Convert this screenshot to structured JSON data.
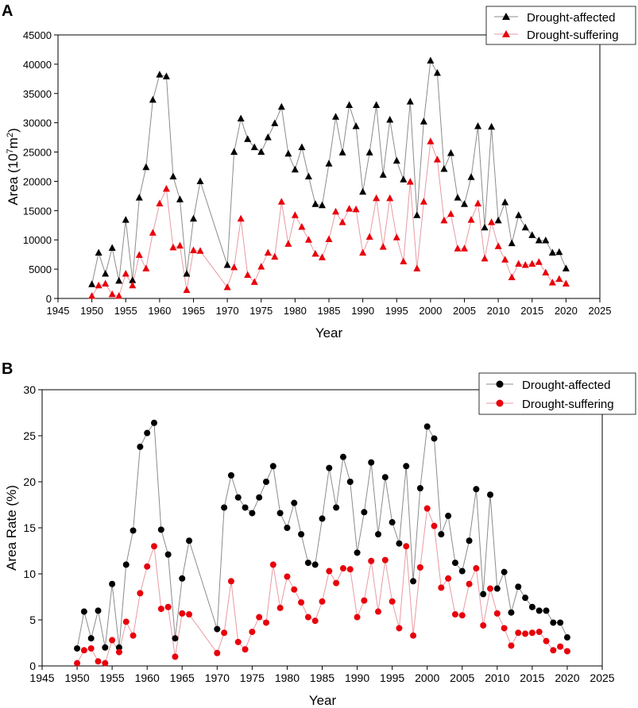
{
  "chart_data": [
    {
      "panel_label": "A",
      "type": "line",
      "xlabel": "Year",
      "ylabel_prefix": "Area (10",
      "ylabel_sup1": "7",
      "ylabel_mid": "m",
      "ylabel_sup2": "2",
      "ylabel_suffix": ")",
      "xlim": [
        1945,
        2025
      ],
      "ylim": [
        0,
        45000
      ],
      "xticks": [
        1945,
        1950,
        1955,
        1960,
        1965,
        1970,
        1975,
        1980,
        1985,
        1990,
        1995,
        2000,
        2005,
        2010,
        2015,
        2020,
        2025
      ],
      "yticks": [
        0,
        5000,
        10000,
        15000,
        20000,
        25000,
        30000,
        35000,
        40000,
        45000
      ],
      "legend_position": "top-right",
      "marker": "triangle",
      "line_colors": [
        "#8c8c8c",
        "#e89aa3"
      ],
      "marker_colors": [
        "#000000",
        "#e8000b"
      ],
      "x": [
        1950,
        1951,
        1952,
        1953,
        1954,
        1955,
        1956,
        1957,
        1958,
        1959,
        1960,
        1961,
        1962,
        1963,
        1964,
        1965,
        1966,
        1970,
        1971,
        1972,
        1973,
        1974,
        1975,
        1976,
        1977,
        1978,
        1979,
        1980,
        1981,
        1982,
        1983,
        1984,
        1985,
        1986,
        1987,
        1988,
        1989,
        1990,
        1991,
        1992,
        1993,
        1994,
        1995,
        1996,
        1997,
        1998,
        1999,
        2000,
        2001,
        2002,
        2003,
        2004,
        2005,
        2006,
        2007,
        2008,
        2009,
        2010,
        2011,
        2012,
        2013,
        2014,
        2015,
        2016,
        2017,
        2018,
        2019,
        2020
      ],
      "series": [
        {
          "name": "Drought-affected",
          "values": [
            2400,
            7800,
            4200,
            8600,
            3000,
            13400,
            3100,
            17200,
            22400,
            33900,
            38200,
            37900,
            20800,
            16900,
            4200,
            13600,
            20000,
            5700,
            25000,
            30700,
            27200,
            25800,
            25000,
            27500,
            29900,
            32700,
            24700,
            22000,
            25800,
            20800,
            16100,
            15900,
            23000,
            31000,
            24900,
            33000,
            29400,
            18200,
            24900,
            33000,
            21100,
            30500,
            23500,
            20300,
            33600,
            14200,
            30200,
            40600,
            38500,
            22100,
            24800,
            17200,
            16100,
            20700,
            29400,
            12100,
            29300,
            13300,
            16400,
            9400,
            14200,
            12100,
            10800,
            9900,
            9900,
            7800,
            7900,
            5100
          ]
        },
        {
          "name": "Drought-suffering",
          "values": [
            400,
            2200,
            2500,
            700,
            400,
            4200,
            2200,
            7400,
            5100,
            11200,
            16200,
            18700,
            8700,
            9000,
            1400,
            8200,
            8100,
            1900,
            5300,
            13600,
            4000,
            2800,
            5400,
            7800,
            7100,
            16500,
            9300,
            14200,
            12200,
            10000,
            7600,
            7000,
            10100,
            14800,
            13000,
            15300,
            15200,
            7800,
            10500,
            17100,
            8800,
            17100,
            10400,
            6300,
            19900,
            5100,
            16500,
            26800,
            23700,
            13300,
            14400,
            8500,
            8500,
            13400,
            16200,
            6800,
            13000,
            8900,
            6600,
            3600,
            5900,
            5700,
            5900,
            6200,
            4400,
            2700,
            3300,
            2500
          ]
        }
      ]
    },
    {
      "panel_label": "B",
      "type": "line",
      "xlabel": "Year",
      "ylabel": "Area Rate (%)",
      "xlim": [
        1945,
        2025
      ],
      "ylim": [
        0,
        30
      ],
      "xticks": [
        1945,
        1950,
        1955,
        1960,
        1965,
        1970,
        1975,
        1980,
        1985,
        1990,
        1995,
        2000,
        2005,
        2010,
        2015,
        2020,
        2025
      ],
      "yticks": [
        0,
        5,
        10,
        15,
        20,
        25,
        30
      ],
      "legend_position": "top-right",
      "marker": "circle",
      "line_colors": [
        "#8c8c8c",
        "#e89aa3"
      ],
      "marker_colors": [
        "#000000",
        "#e8000b"
      ],
      "x": [
        1950,
        1951,
        1952,
        1953,
        1954,
        1955,
        1956,
        1957,
        1958,
        1959,
        1960,
        1961,
        1962,
        1963,
        1964,
        1965,
        1966,
        1970,
        1971,
        1972,
        1973,
        1974,
        1975,
        1976,
        1977,
        1978,
        1979,
        1980,
        1981,
        1982,
        1983,
        1984,
        1985,
        1986,
        1987,
        1988,
        1989,
        1990,
        1991,
        1992,
        1993,
        1994,
        1995,
        1996,
        1997,
        1998,
        1999,
        2000,
        2001,
        2002,
        2003,
        2004,
        2005,
        2006,
        2007,
        2008,
        2009,
        2010,
        2011,
        2012,
        2013,
        2014,
        2015,
        2016,
        2017,
        2018,
        2019,
        2020
      ],
      "series": [
        {
          "name": "Drought-affected",
          "values": [
            1.9,
            5.9,
            3.0,
            6.0,
            2.0,
            8.9,
            2.0,
            11.0,
            14.7,
            23.8,
            25.3,
            26.4,
            14.8,
            12.1,
            3.0,
            9.5,
            13.6,
            4.0,
            17.2,
            20.7,
            18.3,
            17.2,
            16.6,
            18.3,
            20.0,
            21.7,
            16.6,
            15.0,
            17.7,
            14.3,
            11.2,
            11.0,
            16.0,
            21.5,
            17.2,
            22.7,
            20.0,
            12.3,
            16.7,
            22.1,
            14.3,
            20.5,
            15.6,
            13.3,
            21.7,
            9.2,
            19.3,
            26.0,
            24.7,
            14.3,
            16.3,
            11.2,
            10.3,
            13.6,
            19.2,
            7.8,
            18.6,
            8.4,
            10.2,
            5.8,
            8.6,
            7.4,
            6.4,
            6.0,
            6.0,
            4.7,
            4.7,
            3.1
          ]
        },
        {
          "name": "Drought-suffering",
          "values": [
            0.3,
            1.7,
            1.9,
            0.5,
            0.3,
            2.8,
            1.5,
            4.8,
            3.3,
            7.9,
            10.8,
            13.0,
            6.2,
            6.4,
            1.0,
            5.7,
            5.6,
            1.4,
            3.6,
            9.2,
            2.6,
            1.8,
            3.7,
            5.3,
            4.7,
            11.0,
            6.3,
            9.7,
            8.3,
            6.9,
            5.3,
            4.9,
            7.0,
            10.3,
            9.0,
            10.6,
            10.5,
            5.3,
            7.1,
            11.4,
            5.9,
            11.5,
            7.0,
            4.1,
            13.0,
            3.3,
            10.7,
            17.1,
            15.2,
            8.5,
            9.5,
            5.6,
            5.5,
            8.9,
            10.6,
            4.4,
            8.4,
            5.7,
            4.1,
            2.2,
            3.6,
            3.5,
            3.6,
            3.7,
            2.7,
            1.7,
            2.1,
            1.6
          ]
        }
      ]
    }
  ]
}
